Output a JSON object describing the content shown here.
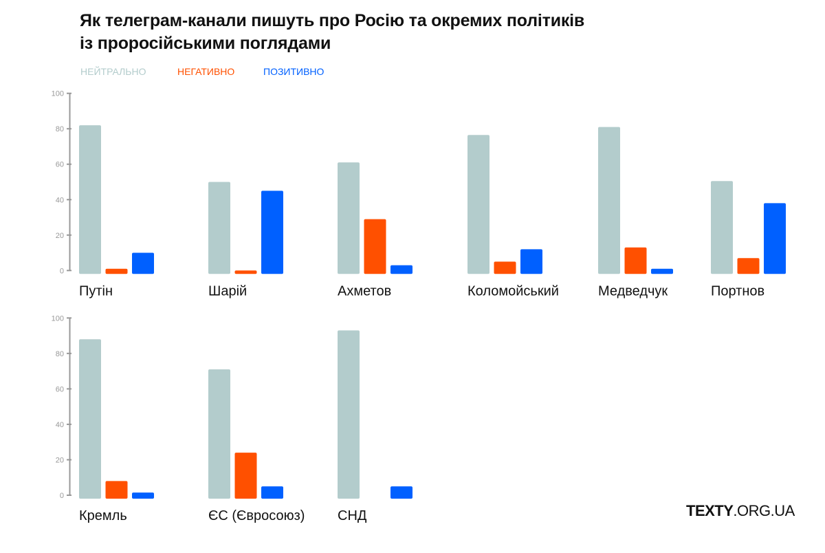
{
  "chart_data": {
    "type": "bar",
    "title": [
      "Як телеграм-канали пишуть про Росію та окремих політиків",
      "із проросійськими поглядами"
    ],
    "legend": [
      {
        "name": "НЕЙТРАЛЬНО",
        "color": "#b3cccc"
      },
      {
        "name": "НЕГАТИВНО",
        "color": "#ff5000"
      },
      {
        "name": "ПОЗИТИВНО",
        "color": "#0060ff"
      }
    ],
    "legend_placement": "top-left",
    "ylim": [
      0,
      100
    ],
    "yticks": [
      "0",
      "20",
      "40",
      "60",
      "80",
      "100"
    ],
    "grid": false,
    "panels": [
      {
        "row": 1,
        "categories": [
          "Путін",
          "Шарій",
          "Ахметов",
          "Коломойський",
          "Медведчук",
          "Портнов"
        ],
        "series": [
          {
            "name": "НЕЙТРАЛЬНО",
            "values": [
              82,
              50,
              61,
              76.5,
              81,
              50.5
            ]
          },
          {
            "name": "НЕГАТИВНО",
            "values": [
              1,
              0,
              29,
              5,
              13,
              7
            ]
          },
          {
            "name": "ПОЗИТИВНО",
            "values": [
              10,
              45,
              3,
              12,
              1,
              38
            ]
          }
        ]
      },
      {
        "row": 2,
        "categories": [
          "Кремль",
          "ЄС (Євросоюз)",
          "СНД"
        ],
        "series": [
          {
            "name": "НЕЙТРАЛЬНО",
            "values": [
              88,
              71,
              93
            ]
          },
          {
            "name": "НЕГАТИВНО",
            "values": [
              8,
              24,
              null
            ]
          },
          {
            "name": "ПОЗИТИВНО",
            "values": [
              1.5,
              5,
              5
            ]
          }
        ]
      }
    ]
  },
  "logo": {
    "bold": "TEXTY",
    "rest": ".ORG.UA"
  }
}
